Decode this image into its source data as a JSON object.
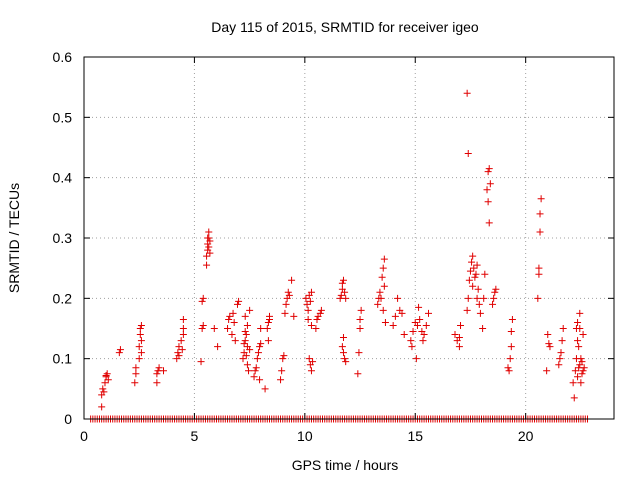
{
  "chart_data": {
    "type": "scatter",
    "title": "Day 115 of 2015, SRMTID for receiver igeo",
    "xlabel": "GPS time / hours",
    "ylabel": "SRMTID / TECUs",
    "xlim": [
      0,
      24
    ],
    "ylim": [
      0,
      0.6
    ],
    "xticks": [
      0,
      5,
      10,
      15,
      20
    ],
    "xtick_labels": [
      "0",
      "5",
      "10",
      "15",
      "20"
    ],
    "yticks": [
      0,
      0.1,
      0.2,
      0.3,
      0.4,
      0.5,
      0.6
    ],
    "ytick_labels": [
      "0",
      "0.1",
      "0.2",
      "0.3",
      "0.4",
      "0.5",
      "0.6"
    ],
    "grid": true,
    "marker": "plus",
    "color": "#e00000",
    "series": [
      {
        "name": "SRMTID",
        "points": [
          [
            0.8,
            0.02
          ],
          [
            0.8,
            0.04
          ],
          [
            0.85,
            0.05
          ],
          [
            0.9,
            0.045
          ],
          [
            0.95,
            0.06
          ],
          [
            1.0,
            0.07
          ],
          [
            1.05,
            0.075
          ],
          [
            1.1,
            0.065
          ],
          [
            1.0,
            0.072
          ],
          [
            1.6,
            0.11
          ],
          [
            1.65,
            0.115
          ],
          [
            2.3,
            0.06
          ],
          [
            2.35,
            0.075
          ],
          [
            2.35,
            0.085
          ],
          [
            2.5,
            0.1
          ],
          [
            2.5,
            0.12
          ],
          [
            2.55,
            0.14
          ],
          [
            2.55,
            0.15
          ],
          [
            2.6,
            0.155
          ],
          [
            2.6,
            0.11
          ],
          [
            2.6,
            0.13
          ],
          [
            3.3,
            0.06
          ],
          [
            3.3,
            0.075
          ],
          [
            3.35,
            0.08
          ],
          [
            3.4,
            0.085
          ],
          [
            3.6,
            0.08
          ],
          [
            4.2,
            0.1
          ],
          [
            4.25,
            0.11
          ],
          [
            4.3,
            0.12
          ],
          [
            4.3,
            0.105
          ],
          [
            4.4,
            0.13
          ],
          [
            4.45,
            0.115
          ],
          [
            4.5,
            0.15
          ],
          [
            4.5,
            0.165
          ],
          [
            4.5,
            0.14
          ],
          [
            5.3,
            0.095
          ],
          [
            5.35,
            0.15
          ],
          [
            5.4,
            0.155
          ],
          [
            5.35,
            0.195
          ],
          [
            5.4,
            0.2
          ],
          [
            5.55,
            0.255
          ],
          [
            5.55,
            0.27
          ],
          [
            5.6,
            0.28
          ],
          [
            5.6,
            0.29
          ],
          [
            5.6,
            0.3
          ],
          [
            5.65,
            0.285
          ],
          [
            5.65,
            0.31
          ],
          [
            5.7,
            0.295
          ],
          [
            5.7,
            0.275
          ],
          [
            5.65,
            0.3
          ],
          [
            5.9,
            0.15
          ],
          [
            6.05,
            0.12
          ],
          [
            6.5,
            0.15
          ],
          [
            6.55,
            0.165
          ],
          [
            6.6,
            0.17
          ],
          [
            6.7,
            0.14
          ],
          [
            6.75,
            0.175
          ],
          [
            6.8,
            0.16
          ],
          [
            6.85,
            0.13
          ],
          [
            6.95,
            0.19
          ],
          [
            7.0,
            0.195
          ],
          [
            7.2,
            0.1
          ],
          [
            7.25,
            0.11
          ],
          [
            7.25,
            0.125
          ],
          [
            7.3,
            0.13
          ],
          [
            7.3,
            0.145
          ],
          [
            7.35,
            0.105
          ],
          [
            7.35,
            0.14
          ],
          [
            7.4,
            0.155
          ],
          [
            7.4,
            0.09
          ],
          [
            7.45,
            0.08
          ],
          [
            7.5,
            0.115
          ],
          [
            7.5,
            0.18
          ],
          [
            7.3,
            0.17
          ],
          [
            7.4,
            0.12
          ],
          [
            7.7,
            0.07
          ],
          [
            7.75,
            0.08
          ],
          [
            7.8,
            0.085
          ],
          [
            7.85,
            0.1
          ],
          [
            7.9,
            0.11
          ],
          [
            7.95,
            0.12
          ],
          [
            7.95,
            0.065
          ],
          [
            8.0,
            0.125
          ],
          [
            8.0,
            0.15
          ],
          [
            8.2,
            0.05
          ],
          [
            8.3,
            0.15
          ],
          [
            8.35,
            0.16
          ],
          [
            8.4,
            0.165
          ],
          [
            8.4,
            0.17
          ],
          [
            8.35,
            0.13
          ],
          [
            8.9,
            0.065
          ],
          [
            8.95,
            0.08
          ],
          [
            9.0,
            0.1
          ],
          [
            9.05,
            0.105
          ],
          [
            9.1,
            0.175
          ],
          [
            9.15,
            0.19
          ],
          [
            9.2,
            0.2
          ],
          [
            9.25,
            0.21
          ],
          [
            9.3,
            0.205
          ],
          [
            9.4,
            0.23
          ],
          [
            9.5,
            0.17
          ],
          [
            10.05,
            0.2
          ],
          [
            10.1,
            0.19
          ],
          [
            10.15,
            0.18
          ],
          [
            10.15,
            0.165
          ],
          [
            10.2,
            0.205
          ],
          [
            10.25,
            0.195
          ],
          [
            10.3,
            0.21
          ],
          [
            10.3,
            0.155
          ],
          [
            10.2,
            0.1
          ],
          [
            10.25,
            0.09
          ],
          [
            10.3,
            0.08
          ],
          [
            10.35,
            0.095
          ],
          [
            10.5,
            0.15
          ],
          [
            10.55,
            0.165
          ],
          [
            10.6,
            0.17
          ],
          [
            10.7,
            0.175
          ],
          [
            10.75,
            0.18
          ],
          [
            11.6,
            0.2
          ],
          [
            11.65,
            0.205
          ],
          [
            11.7,
            0.215
          ],
          [
            11.7,
            0.225
          ],
          [
            11.75,
            0.23
          ],
          [
            11.8,
            0.21
          ],
          [
            11.85,
            0.2
          ],
          [
            11.7,
            0.12
          ],
          [
            11.75,
            0.11
          ],
          [
            11.8,
            0.1
          ],
          [
            11.85,
            0.095
          ],
          [
            11.75,
            0.135
          ],
          [
            12.4,
            0.075
          ],
          [
            12.45,
            0.11
          ],
          [
            12.5,
            0.15
          ],
          [
            12.5,
            0.165
          ],
          [
            12.55,
            0.18
          ],
          [
            13.3,
            0.19
          ],
          [
            13.35,
            0.2
          ],
          [
            13.4,
            0.21
          ],
          [
            13.45,
            0.2
          ],
          [
            13.5,
            0.235
          ],
          [
            13.55,
            0.25
          ],
          [
            13.6,
            0.265
          ],
          [
            13.6,
            0.22
          ],
          [
            13.55,
            0.18
          ],
          [
            13.65,
            0.16
          ],
          [
            14.0,
            0.155
          ],
          [
            14.1,
            0.17
          ],
          [
            14.2,
            0.2
          ],
          [
            14.3,
            0.18
          ],
          [
            14.4,
            0.175
          ],
          [
            14.5,
            0.14
          ],
          [
            14.8,
            0.13
          ],
          [
            14.85,
            0.12
          ],
          [
            14.9,
            0.145
          ],
          [
            15.0,
            0.16
          ],
          [
            15.05,
            0.1
          ],
          [
            15.1,
            0.155
          ],
          [
            15.15,
            0.185
          ],
          [
            15.2,
            0.165
          ],
          [
            15.3,
            0.145
          ],
          [
            15.35,
            0.13
          ],
          [
            15.4,
            0.14
          ],
          [
            15.5,
            0.155
          ],
          [
            15.6,
            0.175
          ],
          [
            16.8,
            0.14
          ],
          [
            16.9,
            0.13
          ],
          [
            17.0,
            0.12
          ],
          [
            17.05,
            0.155
          ],
          [
            17.0,
            0.135
          ],
          [
            17.35,
            0.54
          ],
          [
            17.4,
            0.44
          ],
          [
            17.35,
            0.18
          ],
          [
            17.4,
            0.2
          ],
          [
            17.45,
            0.23
          ],
          [
            17.5,
            0.245
          ],
          [
            17.55,
            0.26
          ],
          [
            17.6,
            0.27
          ],
          [
            17.6,
            0.22
          ],
          [
            17.65,
            0.25
          ],
          [
            17.7,
            0.235
          ],
          [
            17.75,
            0.24
          ],
          [
            17.8,
            0.255
          ],
          [
            17.8,
            0.2
          ],
          [
            17.85,
            0.215
          ],
          [
            17.9,
            0.19
          ],
          [
            17.95,
            0.175
          ],
          [
            18.05,
            0.15
          ],
          [
            18.1,
            0.2
          ],
          [
            18.15,
            0.24
          ],
          [
            18.25,
            0.38
          ],
          [
            18.3,
            0.36
          ],
          [
            18.3,
            0.41
          ],
          [
            18.35,
            0.415
          ],
          [
            18.35,
            0.325
          ],
          [
            18.4,
            0.39
          ],
          [
            18.5,
            0.19
          ],
          [
            18.55,
            0.2
          ],
          [
            18.6,
            0.21
          ],
          [
            18.65,
            0.215
          ],
          [
            19.2,
            0.085
          ],
          [
            19.25,
            0.08
          ],
          [
            19.3,
            0.1
          ],
          [
            19.35,
            0.12
          ],
          [
            19.35,
            0.145
          ],
          [
            19.4,
            0.165
          ],
          [
            20.55,
            0.2
          ],
          [
            20.6,
            0.24
          ],
          [
            20.6,
            0.25
          ],
          [
            20.65,
            0.31
          ],
          [
            20.65,
            0.34
          ],
          [
            20.7,
            0.365
          ],
          [
            20.95,
            0.08
          ],
          [
            21.0,
            0.14
          ],
          [
            21.05,
            0.125
          ],
          [
            21.1,
            0.12
          ],
          [
            21.5,
            0.09
          ],
          [
            21.55,
            0.1
          ],
          [
            21.6,
            0.11
          ],
          [
            21.65,
            0.13
          ],
          [
            21.7,
            0.15
          ],
          [
            22.15,
            0.06
          ],
          [
            22.2,
            0.035
          ],
          [
            22.25,
            0.08
          ],
          [
            22.3,
            0.1
          ],
          [
            22.3,
            0.15
          ],
          [
            22.35,
            0.16
          ],
          [
            22.35,
            0.07
          ],
          [
            22.4,
            0.085
          ],
          [
            22.4,
            0.12
          ],
          [
            22.45,
            0.175
          ],
          [
            22.45,
            0.09
          ],
          [
            22.5,
            0.06
          ],
          [
            22.5,
            0.1
          ],
          [
            22.55,
            0.075
          ],
          [
            22.55,
            0.095
          ],
          [
            22.6,
            0.08
          ],
          [
            22.6,
            0.14
          ],
          [
            22.65,
            0.085
          ],
          [
            22.35,
            0.13
          ],
          [
            22.45,
            0.15
          ]
        ]
      }
    ],
    "zero_band": {
      "y": 0,
      "x_start": 0.3,
      "x_end": 22.8,
      "x_step": 0.1
    }
  }
}
